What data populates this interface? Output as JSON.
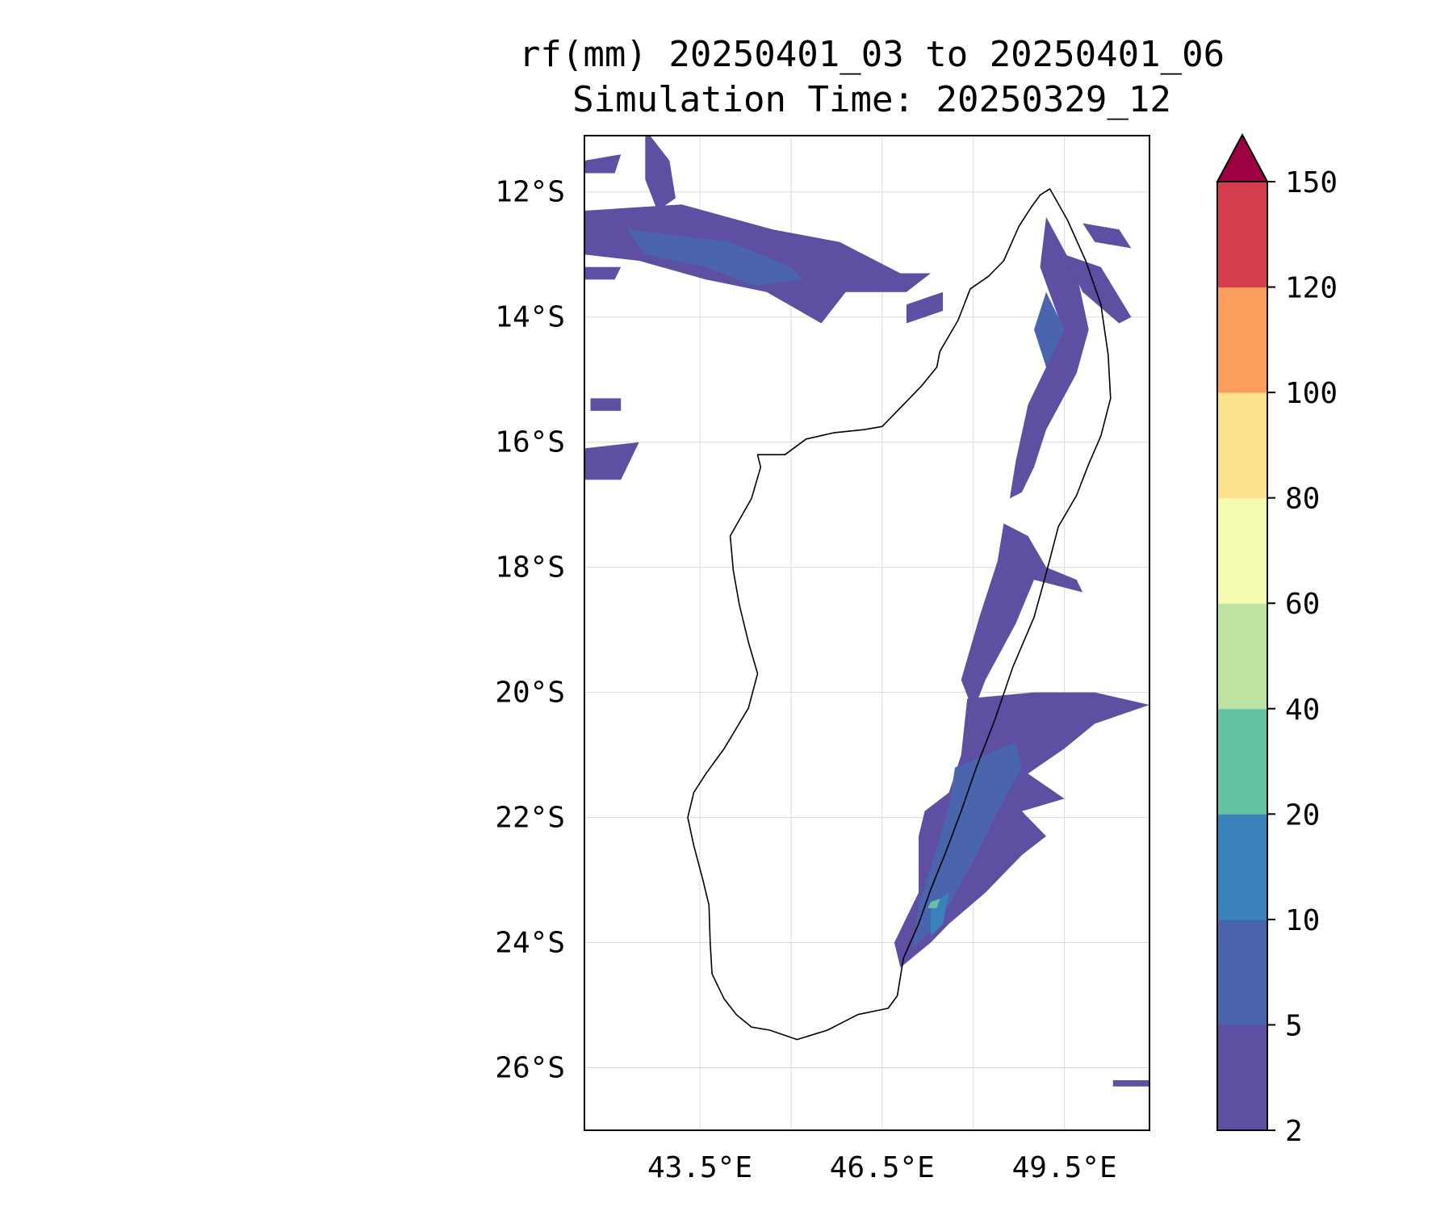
{
  "title": {
    "line1": "rf(mm) 20250401_03 to 20250401_06",
    "line2": "Simulation Time: 20250329_12"
  },
  "map": {
    "region": "Madagascar",
    "lon_range": [
      41.6,
      50.9
    ],
    "lat_range": [
      -27.0,
      -11.1
    ],
    "lon_ticks": [
      {
        "value": 43.5,
        "label": "43.5°E"
      },
      {
        "value": 46.5,
        "label": "46.5°E"
      },
      {
        "value": 49.5,
        "label": "49.5°E"
      }
    ],
    "lat_ticks": [
      {
        "value": -12,
        "label": "12°S"
      },
      {
        "value": -14,
        "label": "14°S"
      },
      {
        "value": -16,
        "label": "16°S"
      },
      {
        "value": -18,
        "label": "18°S"
      },
      {
        "value": -20,
        "label": "20°S"
      },
      {
        "value": -22,
        "label": "22°S"
      },
      {
        "value": -24,
        "label": "24°S"
      },
      {
        "value": -26,
        "label": "26°S"
      }
    ],
    "grid": true
  },
  "colorbar": {
    "levels": [
      {
        "value": 2,
        "label": "2"
      },
      {
        "value": 5,
        "label": "5"
      },
      {
        "value": 10,
        "label": "10"
      },
      {
        "value": 20,
        "label": "20"
      },
      {
        "value": 40,
        "label": "40"
      },
      {
        "value": 60,
        "label": "60"
      },
      {
        "value": 80,
        "label": "80"
      },
      {
        "value": 100,
        "label": "100"
      },
      {
        "value": 120,
        "label": "120"
      },
      {
        "value": 150,
        "label": "150"
      }
    ],
    "colors": [
      "#5e4fa2",
      "#4a65ad",
      "#3a82bb",
      "#66c2a5",
      "#bde3a2",
      "#f4faae",
      "#fde08b",
      "#fb9e5b",
      "#d53e4f"
    ],
    "extend_color": "#9e0142",
    "extend": "max"
  },
  "rainfall_areas": [
    {
      "level": 2,
      "points": [
        [
          41.6,
          -12.3
        ],
        [
          43.2,
          -12.2
        ],
        [
          44.7,
          -12.6
        ],
        [
          45.8,
          -12.8
        ],
        [
          46.8,
          -13.3
        ],
        [
          47.3,
          -13.3
        ],
        [
          46.9,
          -13.6
        ],
        [
          45.9,
          -13.6
        ],
        [
          45.5,
          -14.1
        ],
        [
          44.6,
          -13.6
        ],
        [
          43.6,
          -13.4
        ],
        [
          42.5,
          -13.1
        ],
        [
          41.6,
          -13.0
        ]
      ]
    },
    {
      "level": 2,
      "points": [
        [
          41.6,
          -11.5
        ],
        [
          42.2,
          -11.4
        ],
        [
          42.1,
          -11.7
        ],
        [
          41.6,
          -11.7
        ]
      ]
    },
    {
      "level": 2,
      "points": [
        [
          42.6,
          -11.0
        ],
        [
          43.0,
          -11.5
        ],
        [
          43.1,
          -12.1
        ],
        [
          42.8,
          -12.3
        ],
        [
          42.6,
          -11.8
        ]
      ]
    },
    {
      "level": 2,
      "points": [
        [
          41.6,
          -13.2
        ],
        [
          42.2,
          -13.2
        ],
        [
          42.1,
          -13.4
        ],
        [
          41.6,
          -13.4
        ]
      ]
    },
    {
      "level": 2,
      "points": [
        [
          41.7,
          -15.3
        ],
        [
          42.2,
          -15.3
        ],
        [
          42.2,
          -15.5
        ],
        [
          41.7,
          -15.5
        ]
      ]
    },
    {
      "level": 2,
      "points": [
        [
          41.6,
          -16.1
        ],
        [
          42.5,
          -16.0
        ],
        [
          42.2,
          -16.6
        ],
        [
          41.6,
          -16.6
        ]
      ]
    },
    {
      "level": 2,
      "points": [
        [
          46.9,
          -13.8
        ],
        [
          47.5,
          -13.6
        ],
        [
          47.5,
          -13.9
        ],
        [
          46.9,
          -14.1
        ]
      ]
    },
    {
      "level": 2,
      "points": [
        [
          49.2,
          -12.4
        ],
        [
          49.7,
          -13.3
        ],
        [
          49.9,
          -14.2
        ],
        [
          49.7,
          -14.9
        ],
        [
          49.2,
          -15.8
        ],
        [
          49.0,
          -16.4
        ],
        [
          48.8,
          -16.8
        ],
        [
          48.6,
          -16.9
        ],
        [
          48.7,
          -16.3
        ],
        [
          48.9,
          -15.4
        ],
        [
          49.2,
          -14.8
        ],
        [
          49.4,
          -14.0
        ],
        [
          49.1,
          -13.2
        ]
      ]
    },
    {
      "level": 2,
      "points": [
        [
          49.5,
          -13.0
        ],
        [
          50.1,
          -13.2
        ],
        [
          50.6,
          -14.0
        ],
        [
          50.4,
          -14.1
        ],
        [
          49.8,
          -13.6
        ]
      ]
    },
    {
      "level": 2,
      "points": [
        [
          49.8,
          -12.5
        ],
        [
          50.4,
          -12.6
        ],
        [
          50.6,
          -12.9
        ],
        [
          50.0,
          -12.8
        ]
      ]
    },
    {
      "level": 2,
      "points": [
        [
          48.5,
          -17.3
        ],
        [
          48.9,
          -17.5
        ],
        [
          49.2,
          -18.0
        ],
        [
          49.7,
          -18.2
        ],
        [
          49.8,
          -18.4
        ],
        [
          49.0,
          -18.2
        ],
        [
          48.7,
          -18.9
        ],
        [
          48.2,
          -19.8
        ],
        [
          48.0,
          -20.3
        ],
        [
          47.8,
          -19.8
        ],
        [
          48.1,
          -18.8
        ],
        [
          48.4,
          -17.9
        ]
      ]
    },
    {
      "level": 2,
      "points": [
        [
          47.9,
          -20.1
        ],
        [
          49.0,
          -20.0
        ],
        [
          50.0,
          -20.0
        ],
        [
          50.9,
          -20.2
        ],
        [
          50.0,
          -20.5
        ],
        [
          49.5,
          -20.9
        ],
        [
          48.9,
          -21.3
        ],
        [
          49.5,
          -21.7
        ],
        [
          48.8,
          -21.9
        ],
        [
          49.2,
          -22.3
        ],
        [
          48.8,
          -22.6
        ],
        [
          48.2,
          -23.2
        ],
        [
          47.6,
          -23.7
        ],
        [
          47.3,
          -24.0
        ],
        [
          46.8,
          -24.4
        ],
        [
          46.7,
          -24.0
        ],
        [
          47.1,
          -23.2
        ],
        [
          47.1,
          -22.3
        ],
        [
          47.2,
          -21.9
        ],
        [
          47.6,
          -21.6
        ],
        [
          47.8,
          -21.0
        ]
      ]
    },
    {
      "level": 2,
      "points": [
        [
          50.3,
          -26.2
        ],
        [
          50.9,
          -26.2
        ],
        [
          50.9,
          -26.3
        ],
        [
          50.3,
          -26.3
        ]
      ]
    },
    {
      "level": 5,
      "points": [
        [
          42.3,
          -12.6
        ],
        [
          44.0,
          -12.8
        ],
        [
          45.0,
          -13.2
        ],
        [
          45.2,
          -13.4
        ],
        [
          44.4,
          -13.5
        ],
        [
          43.6,
          -13.2
        ],
        [
          42.6,
          -13.0
        ]
      ]
    },
    {
      "level": 5,
      "points": [
        [
          49.2,
          -13.6
        ],
        [
          49.5,
          -14.2
        ],
        [
          49.2,
          -14.8
        ],
        [
          49.0,
          -14.2
        ]
      ]
    },
    {
      "level": 5,
      "points": [
        [
          47.7,
          -21.2
        ],
        [
          48.7,
          -20.8
        ],
        [
          48.8,
          -21.2
        ],
        [
          48.4,
          -21.9
        ],
        [
          48.0,
          -22.7
        ],
        [
          47.6,
          -23.4
        ],
        [
          47.3,
          -23.8
        ],
        [
          47.0,
          -24.1
        ],
        [
          47.1,
          -23.4
        ],
        [
          47.4,
          -22.5
        ],
        [
          47.6,
          -21.8
        ]
      ]
    },
    {
      "level": 10,
      "points": [
        [
          47.3,
          -23.4
        ],
        [
          47.6,
          -23.2
        ],
        [
          47.5,
          -23.7
        ],
        [
          47.3,
          -23.9
        ]
      ]
    },
    {
      "level": 20,
      "points": [
        [
          47.3,
          -23.35
        ],
        [
          47.45,
          -23.3
        ],
        [
          47.4,
          -23.45
        ],
        [
          47.25,
          -23.45
        ]
      ]
    }
  ],
  "coastline": {
    "mainland": [
      [
        49.26,
        -11.95
      ],
      [
        49.55,
        -12.45
      ],
      [
        49.85,
        -13.1
      ],
      [
        50.1,
        -13.8
      ],
      [
        50.22,
        -14.6
      ],
      [
        50.26,
        -15.3
      ],
      [
        50.1,
        -15.9
      ],
      [
        49.9,
        -16.35
      ],
      [
        49.7,
        -16.85
      ],
      [
        49.4,
        -17.35
      ],
      [
        49.2,
        -18.1
      ],
      [
        49.0,
        -18.8
      ],
      [
        48.65,
        -19.6
      ],
      [
        48.35,
        -20.45
      ],
      [
        48.05,
        -21.2
      ],
      [
        47.8,
        -21.9
      ],
      [
        47.55,
        -22.55
      ],
      [
        47.3,
        -23.15
      ],
      [
        47.1,
        -23.7
      ],
      [
        46.85,
        -24.25
      ],
      [
        46.75,
        -24.85
      ],
      [
        46.6,
        -25.05
      ],
      [
        46.1,
        -25.15
      ],
      [
        45.6,
        -25.4
      ],
      [
        45.1,
        -25.55
      ],
      [
        44.65,
        -25.4
      ],
      [
        44.35,
        -25.35
      ],
      [
        44.1,
        -25.15
      ],
      [
        43.9,
        -24.9
      ],
      [
        43.7,
        -24.5
      ],
      [
        43.67,
        -24.0
      ],
      [
        43.65,
        -23.4
      ],
      [
        43.55,
        -23.0
      ],
      [
        43.4,
        -22.45
      ],
      [
        43.3,
        -22.0
      ],
      [
        43.4,
        -21.6
      ],
      [
        43.6,
        -21.3
      ],
      [
        43.9,
        -20.9
      ],
      [
        44.3,
        -20.25
      ],
      [
        44.45,
        -19.7
      ],
      [
        44.3,
        -19.2
      ],
      [
        44.15,
        -18.6
      ],
      [
        44.05,
        -18.05
      ],
      [
        44.0,
        -17.5
      ],
      [
        44.35,
        -16.9
      ],
      [
        44.5,
        -16.4
      ],
      [
        44.45,
        -16.2
      ],
      [
        44.9,
        -16.2
      ],
      [
        45.25,
        -15.95
      ],
      [
        45.7,
        -15.85
      ],
      [
        46.2,
        -15.8
      ],
      [
        46.5,
        -15.75
      ],
      [
        46.85,
        -15.4
      ],
      [
        47.15,
        -15.1
      ],
      [
        47.4,
        -14.8
      ],
      [
        47.45,
        -14.55
      ],
      [
        47.75,
        -14.05
      ],
      [
        47.95,
        -13.55
      ],
      [
        48.25,
        -13.35
      ],
      [
        48.5,
        -13.1
      ],
      [
        48.75,
        -12.55
      ],
      [
        48.95,
        -12.25
      ],
      [
        49.1,
        -12.05
      ]
    ]
  }
}
